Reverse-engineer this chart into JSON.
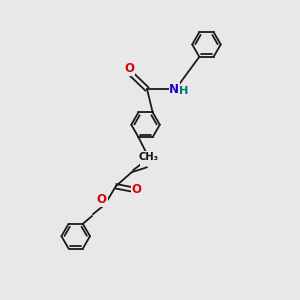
{
  "bg": "#e8e8e8",
  "bond_color": "#1a1a1a",
  "bond_lw": 1.3,
  "ring_r": 0.48,
  "dbl_off": 0.075,
  "atom_colors": {
    "O": "#dd0000",
    "N": "#2200cc",
    "H": "#007777",
    "C": "#111111"
  },
  "fs": 8.5,
  "fs_small": 7.2,
  "figsize": [
    3.0,
    3.0
  ],
  "dpi": 100,
  "xlim": [
    0,
    10
  ],
  "ylim": [
    0,
    10
  ]
}
